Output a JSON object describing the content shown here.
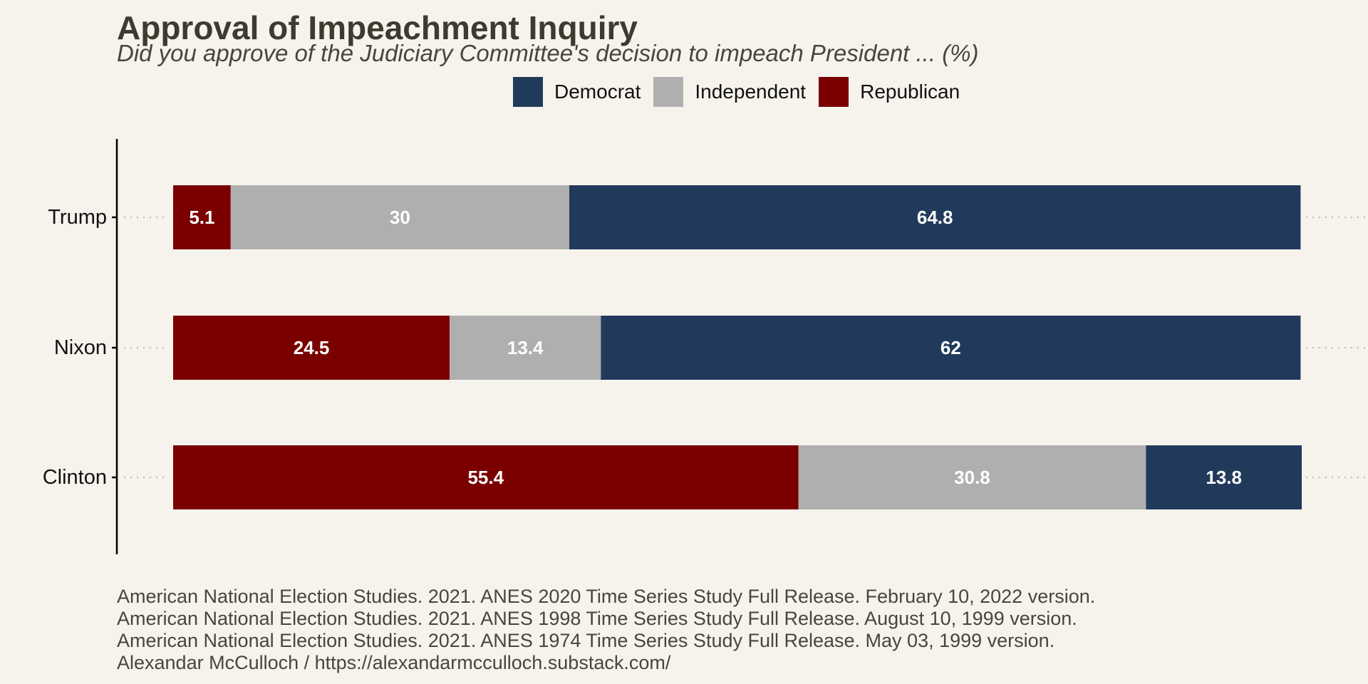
{
  "chart_data": {
    "type": "bar",
    "orientation": "horizontal",
    "stacked": true,
    "title": "Approval of Impeachment Inquiry",
    "subtitle": "Did you approve of the Judiciary Committee's decision to impeach President ... (%)",
    "categories": [
      "Trump",
      "Nixon",
      "Clinton"
    ],
    "series": [
      {
        "name": "Republican",
        "color": "#7a0000",
        "values": [
          5.1,
          24.5,
          55.4
        ]
      },
      {
        "name": "Independent",
        "color": "#afafaf",
        "values": [
          30,
          13.4,
          30.8
        ]
      },
      {
        "name": "Democrat",
        "color": "#213a5c",
        "values": [
          64.8,
          62,
          13.8
        ]
      }
    ],
    "legend": {
      "position": "top",
      "entries": [
        "Democrat",
        "Independent",
        "Republican"
      ]
    },
    "xlim": [
      0,
      100
    ],
    "data_labels": true,
    "grid": "dotted horizontal guides at each category",
    "caption": [
      "American National Election Studies. 2021. ANES 2020 Time Series Study Full Release. February 10, 2022 version.",
      "American National Election Studies. 2021. ANES 1998 Time Series Study Full Release. August 10, 1999 version.",
      "American National Election Studies. 2021. ANES 1974 Time Series Study Full Release. May 03, 1999 version.",
      "Alexandar McCulloch / https://alexandarmcculloch.substack.com/"
    ]
  },
  "colors": {
    "background": "#f6f3ed",
    "title": "#3f3a2f",
    "label_text": "#ffffff"
  }
}
